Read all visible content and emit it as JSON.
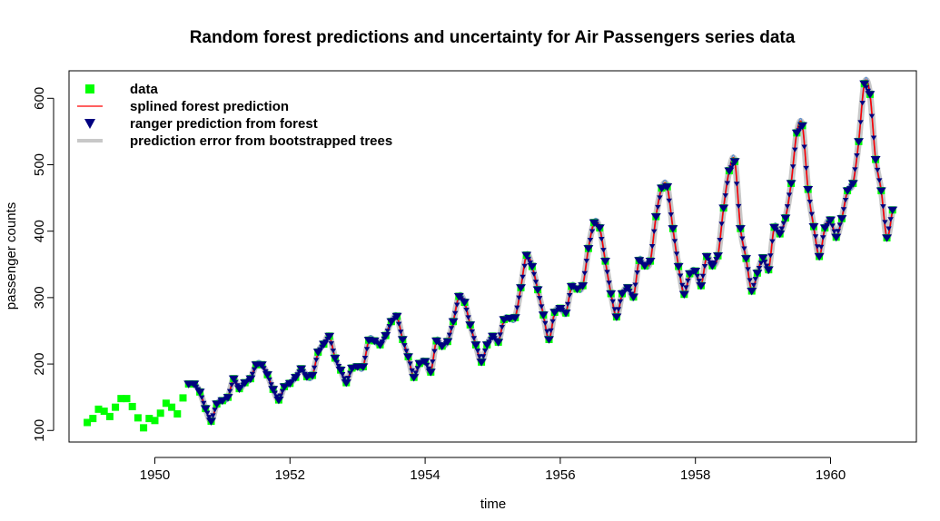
{
  "chart_data": {
    "type": "scatter",
    "title": "Random forest predictions and uncertainty for Air Passengers series data",
    "xlabel": "time",
    "ylabel": "passenger counts",
    "xlim": [
      1948.73,
      1961.27
    ],
    "ylim": [
      82.6,
      641.4
    ],
    "x_ticks": [
      1950,
      1952,
      1954,
      1956,
      1958,
      1960
    ],
    "y_ticks": [
      100,
      200,
      300,
      400,
      500,
      600
    ],
    "x_tick_labels": [
      "1950",
      "1952",
      "1954",
      "1956",
      "1958",
      "1960"
    ],
    "y_tick_labels": [
      "100",
      "200",
      "300",
      "400",
      "500",
      "600"
    ],
    "legend_position": "top-left",
    "legend": [
      {
        "label": "data",
        "symbol": "square",
        "color": "#00ff00"
      },
      {
        "label": "splined forest prediction",
        "symbol": "line",
        "color": "#ff0000"
      },
      {
        "label": "ranger prediction from forest",
        "symbol": "triangle-down",
        "color": "#000080"
      },
      {
        "label": "prediction error from bootstrapped trees",
        "symbol": "thick-line",
        "color": "#c8c8c8"
      }
    ],
    "time_start": 1949.0,
    "time_step": 0.0833333,
    "data_values": [
      112,
      118,
      132,
      129,
      121,
      135,
      148,
      148,
      136,
      119,
      104,
      118,
      115,
      126,
      141,
      135,
      125,
      149,
      170,
      170,
      158,
      133,
      114,
      140,
      145,
      150,
      178,
      163,
      172,
      178,
      199,
      199,
      184,
      162,
      146,
      166,
      171,
      180,
      193,
      181,
      183,
      218,
      230,
      242,
      209,
      191,
      172,
      194,
      196,
      196,
      236,
      235,
      229,
      243,
      264,
      272,
      237,
      211,
      180,
      201,
      204,
      188,
      235,
      227,
      234,
      264,
      302,
      293,
      259,
      229,
      203,
      229,
      242,
      233,
      267,
      269,
      270,
      315,
      364,
      347,
      312,
      274,
      237,
      278,
      284,
      277,
      317,
      313,
      318,
      374,
      413,
      405,
      355,
      306,
      271,
      306,
      315,
      301,
      356,
      348,
      355,
      422,
      465,
      467,
      404,
      347,
      305,
      336,
      340,
      318,
      362,
      348,
      363,
      435,
      491,
      505,
      404,
      359,
      310,
      337,
      360,
      342,
      406,
      396,
      420,
      472,
      548,
      559,
      463,
      407,
      362,
      405,
      417,
      391,
      419,
      461,
      472,
      535,
      622,
      606,
      508,
      461,
      390,
      432
    ],
    "prediction_start_index": 18,
    "colors": {
      "data": "#00ff00",
      "prediction_line": "#ff0000",
      "ranger": "#000080",
      "error_band": "#c8c8c8",
      "band_edge": "#5f8fd0"
    }
  }
}
